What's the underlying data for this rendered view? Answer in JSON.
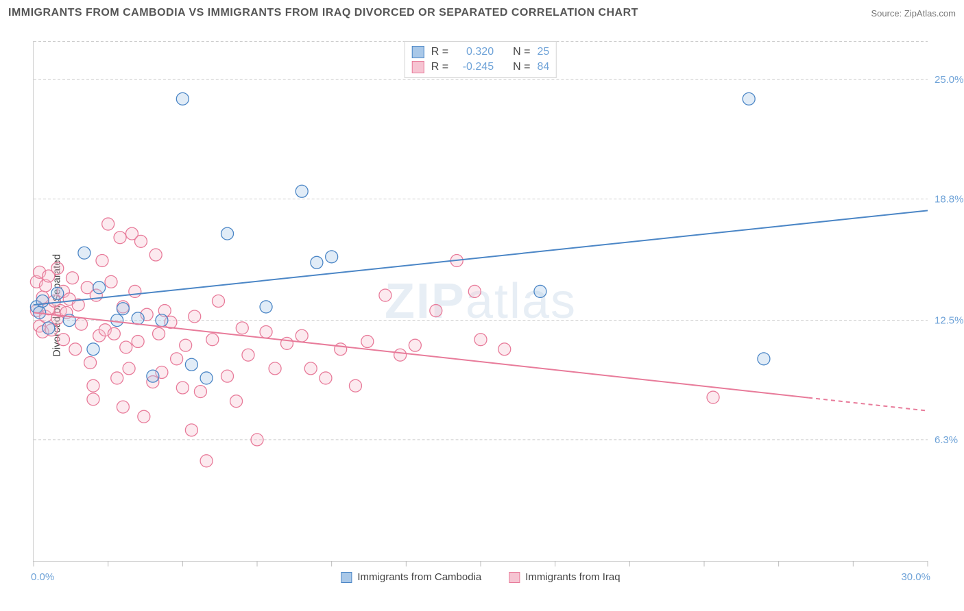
{
  "title": "IMMIGRANTS FROM CAMBODIA VS IMMIGRANTS FROM IRAQ DIVORCED OR SEPARATED CORRELATION CHART",
  "source_prefix": "Source: ",
  "source_name": "ZipAtlas.com",
  "y_axis_label": "Divorced or Separated",
  "watermark_a": "ZIP",
  "watermark_b": "atlas",
  "chart": {
    "type": "scatter",
    "xlim": [
      0.0,
      30.0
    ],
    "ylim": [
      0.0,
      27.0
    ],
    "x_range_labels": {
      "min": "0.0%",
      "max": "30.0%"
    },
    "y_ticks": [
      {
        "v": 6.3,
        "label": "6.3%"
      },
      {
        "v": 12.5,
        "label": "12.5%"
      },
      {
        "v": 18.8,
        "label": "18.8%"
      },
      {
        "v": 25.0,
        "label": "25.0%"
      }
    ],
    "x_ticks": [
      0,
      2.5,
      5,
      7.5,
      10,
      12.5,
      15,
      17.5,
      20,
      22.5,
      25,
      27.5,
      30
    ],
    "background_color": "#ffffff",
    "grid_color": "#cccccc",
    "marker_radius": 9,
    "marker_fill_opacity": 0.35,
    "marker_stroke_width": 1.3,
    "line_width": 2,
    "series": [
      {
        "id": "cambodia",
        "label": "Immigrants from Cambodia",
        "color_stroke": "#4b86c6",
        "color_fill": "#a9c8e8",
        "R": "0.320",
        "N": "25",
        "trend": {
          "x1": 0.0,
          "y1": 13.3,
          "x2": 30.0,
          "y2": 18.2,
          "dash_from_x": null
        },
        "points": [
          [
            0.1,
            13.2
          ],
          [
            0.2,
            12.9
          ],
          [
            0.3,
            13.5
          ],
          [
            0.5,
            12.1
          ],
          [
            0.8,
            13.9
          ],
          [
            1.2,
            12.5
          ],
          [
            1.7,
            16.0
          ],
          [
            2.0,
            11.0
          ],
          [
            2.2,
            14.2
          ],
          [
            2.8,
            12.5
          ],
          [
            3.0,
            13.1
          ],
          [
            3.5,
            12.6
          ],
          [
            4.0,
            9.6
          ],
          [
            4.3,
            12.5
          ],
          [
            5.0,
            24.0
          ],
          [
            5.3,
            10.2
          ],
          [
            5.8,
            9.5
          ],
          [
            6.5,
            17.0
          ],
          [
            7.8,
            13.2
          ],
          [
            9.0,
            19.2
          ],
          [
            9.5,
            15.5
          ],
          [
            10.0,
            15.8
          ],
          [
            17.0,
            14.0
          ],
          [
            24.0,
            24.0
          ],
          [
            24.5,
            10.5
          ]
        ]
      },
      {
        "id": "iraq",
        "label": "Immigrants from Iraq",
        "color_stroke": "#e87b9a",
        "color_fill": "#f6c4d2",
        "R": "-0.245",
        "N": "84",
        "trend": {
          "x1": 0.0,
          "y1": 12.9,
          "x2": 30.0,
          "y2": 7.8,
          "dash_from_x": 26.0
        },
        "points": [
          [
            0.1,
            13.0
          ],
          [
            0.1,
            14.5
          ],
          [
            0.2,
            12.2
          ],
          [
            0.2,
            15.0
          ],
          [
            0.3,
            13.7
          ],
          [
            0.3,
            11.9
          ],
          [
            0.4,
            14.3
          ],
          [
            0.4,
            12.7
          ],
          [
            0.5,
            13.1
          ],
          [
            0.5,
            14.8
          ],
          [
            0.6,
            12.0
          ],
          [
            0.7,
            13.5
          ],
          [
            0.8,
            12.6
          ],
          [
            0.8,
            15.2
          ],
          [
            0.9,
            13.0
          ],
          [
            1.0,
            14.0
          ],
          [
            1.0,
            11.5
          ],
          [
            1.1,
            12.9
          ],
          [
            1.2,
            13.6
          ],
          [
            1.3,
            14.7
          ],
          [
            1.4,
            11.0
          ],
          [
            1.5,
            13.3
          ],
          [
            1.6,
            12.3
          ],
          [
            1.8,
            14.2
          ],
          [
            1.9,
            10.3
          ],
          [
            2.0,
            9.1
          ],
          [
            2.1,
            13.8
          ],
          [
            2.2,
            11.7
          ],
          [
            2.3,
            15.6
          ],
          [
            2.4,
            12.0
          ],
          [
            2.5,
            17.5
          ],
          [
            2.6,
            14.5
          ],
          [
            2.7,
            11.8
          ],
          [
            2.8,
            9.5
          ],
          [
            2.9,
            16.8
          ],
          [
            3.0,
            13.2
          ],
          [
            3.1,
            11.1
          ],
          [
            3.2,
            10.0
          ],
          [
            3.3,
            17.0
          ],
          [
            3.4,
            14.0
          ],
          [
            3.5,
            11.4
          ],
          [
            3.6,
            16.6
          ],
          [
            3.7,
            7.5
          ],
          [
            3.8,
            12.8
          ],
          [
            4.0,
            9.3
          ],
          [
            4.1,
            15.9
          ],
          [
            4.2,
            11.8
          ],
          [
            4.3,
            9.8
          ],
          [
            4.4,
            13.0
          ],
          [
            4.6,
            12.4
          ],
          [
            4.8,
            10.5
          ],
          [
            5.0,
            9.0
          ],
          [
            5.1,
            11.2
          ],
          [
            5.3,
            6.8
          ],
          [
            5.4,
            12.7
          ],
          [
            5.6,
            8.8
          ],
          [
            5.8,
            5.2
          ],
          [
            6.0,
            11.5
          ],
          [
            6.2,
            13.5
          ],
          [
            6.5,
            9.6
          ],
          [
            6.8,
            8.3
          ],
          [
            7.0,
            12.1
          ],
          [
            7.2,
            10.7
          ],
          [
            7.5,
            6.3
          ],
          [
            7.8,
            11.9
          ],
          [
            8.1,
            10.0
          ],
          [
            8.5,
            11.3
          ],
          [
            9.0,
            11.7
          ],
          [
            9.3,
            10.0
          ],
          [
            9.8,
            9.5
          ],
          [
            10.3,
            11.0
          ],
          [
            10.8,
            9.1
          ],
          [
            11.2,
            11.4
          ],
          [
            11.8,
            13.8
          ],
          [
            12.3,
            10.7
          ],
          [
            12.8,
            11.2
          ],
          [
            13.5,
            13.0
          ],
          [
            14.2,
            15.6
          ],
          [
            15.0,
            11.5
          ],
          [
            15.8,
            11.0
          ],
          [
            14.8,
            14.0
          ],
          [
            22.8,
            8.5
          ],
          [
            2.0,
            8.4
          ],
          [
            3.0,
            8.0
          ]
        ]
      }
    ]
  },
  "stats_box": {
    "rows": [
      {
        "series": "cambodia",
        "r_label": "R =",
        "r_val": "0.320",
        "n_label": "N =",
        "n_val": "25"
      },
      {
        "series": "iraq",
        "r_label": "R =",
        "r_val": "-0.245",
        "n_label": "N =",
        "n_val": "84"
      }
    ]
  }
}
